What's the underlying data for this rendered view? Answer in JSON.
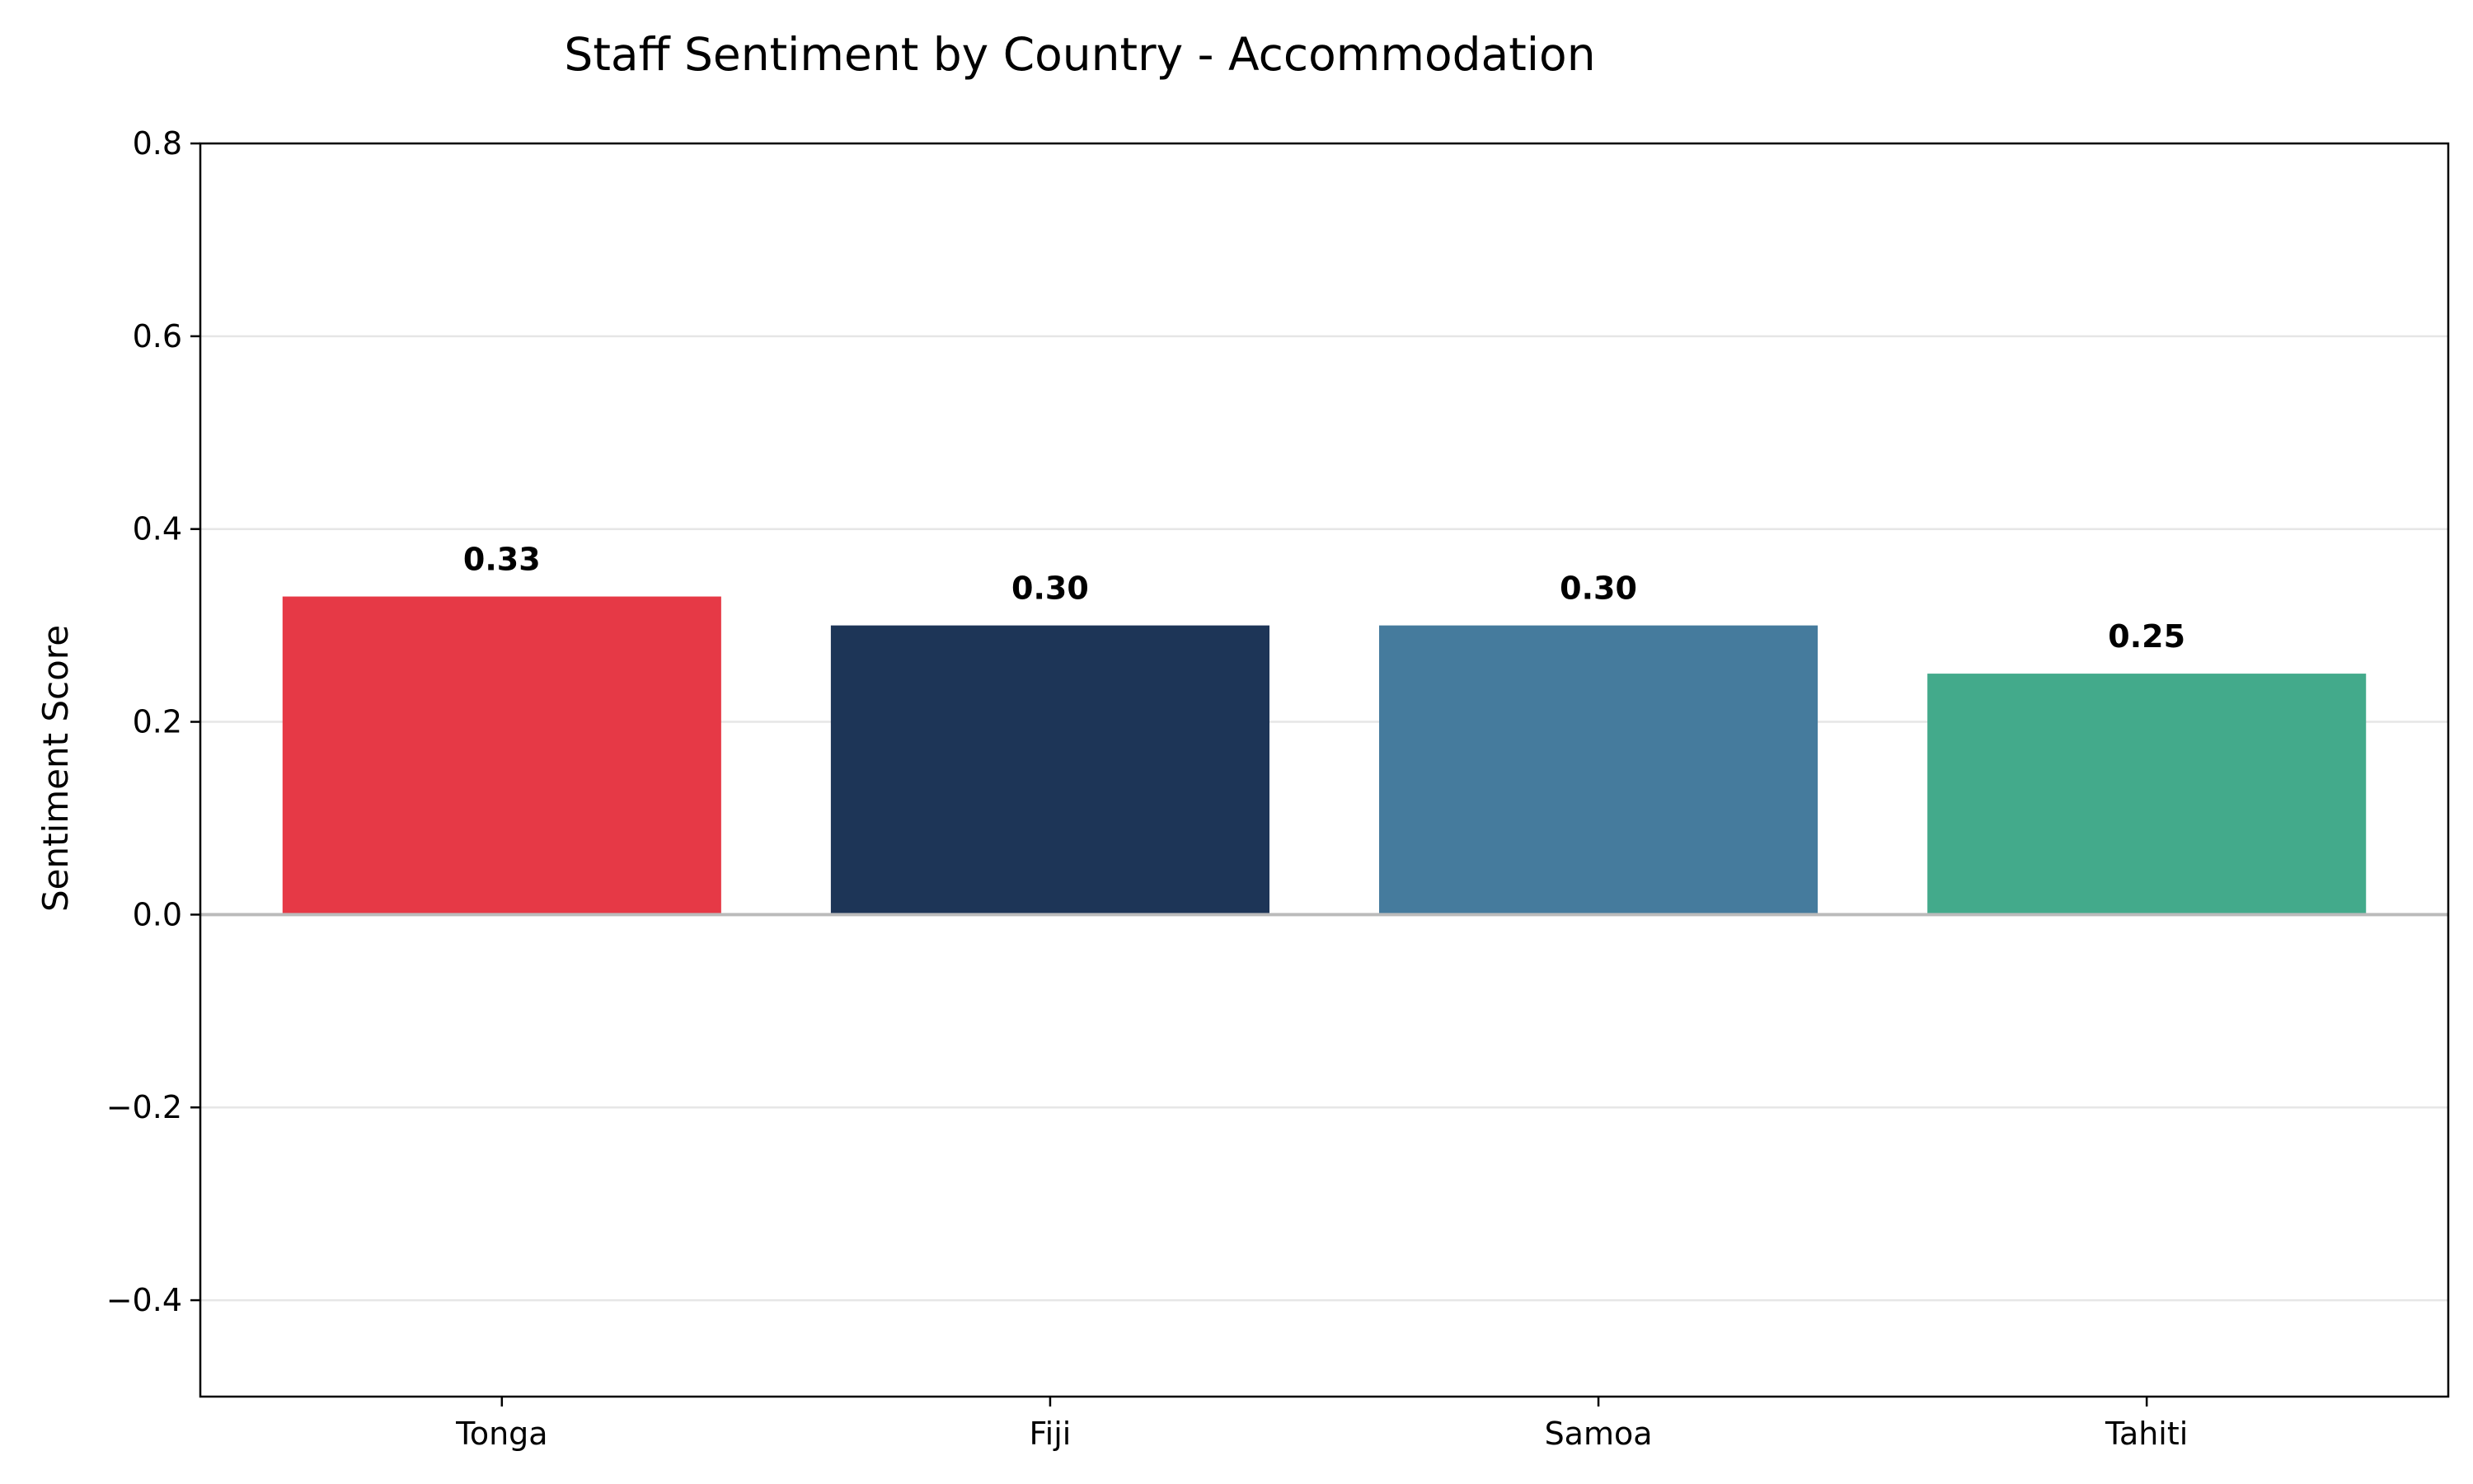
{
  "chart_data": {
    "type": "bar",
    "title": "Staff Sentiment by Country - Accommodation",
    "xlabel": "",
    "ylabel": "Sentiment Score",
    "categories": [
      "Tonga",
      "Fiji",
      "Samoa",
      "Tahiti"
    ],
    "values": [
      0.33,
      0.3,
      0.3,
      0.25
    ],
    "value_labels": [
      "0.33",
      "0.30",
      "0.30",
      "0.25"
    ],
    "colors": [
      "#e63946",
      "#1d3557",
      "#457b9d",
      "#43aa8b"
    ],
    "ylim": [
      -0.5,
      0.8
    ],
    "yticks": [
      -0.4,
      -0.2,
      0.0,
      0.2,
      0.4,
      0.6,
      0.8
    ],
    "ytick_labels": [
      "−0.4",
      "−0.2",
      "0.0",
      "0.2",
      "0.4",
      "0.6",
      "0.8"
    ],
    "grid": true,
    "grid_axis": "y",
    "grid_color": "#e6e6e6",
    "zero_line_color": "#bbbbbb",
    "legend": "none"
  }
}
